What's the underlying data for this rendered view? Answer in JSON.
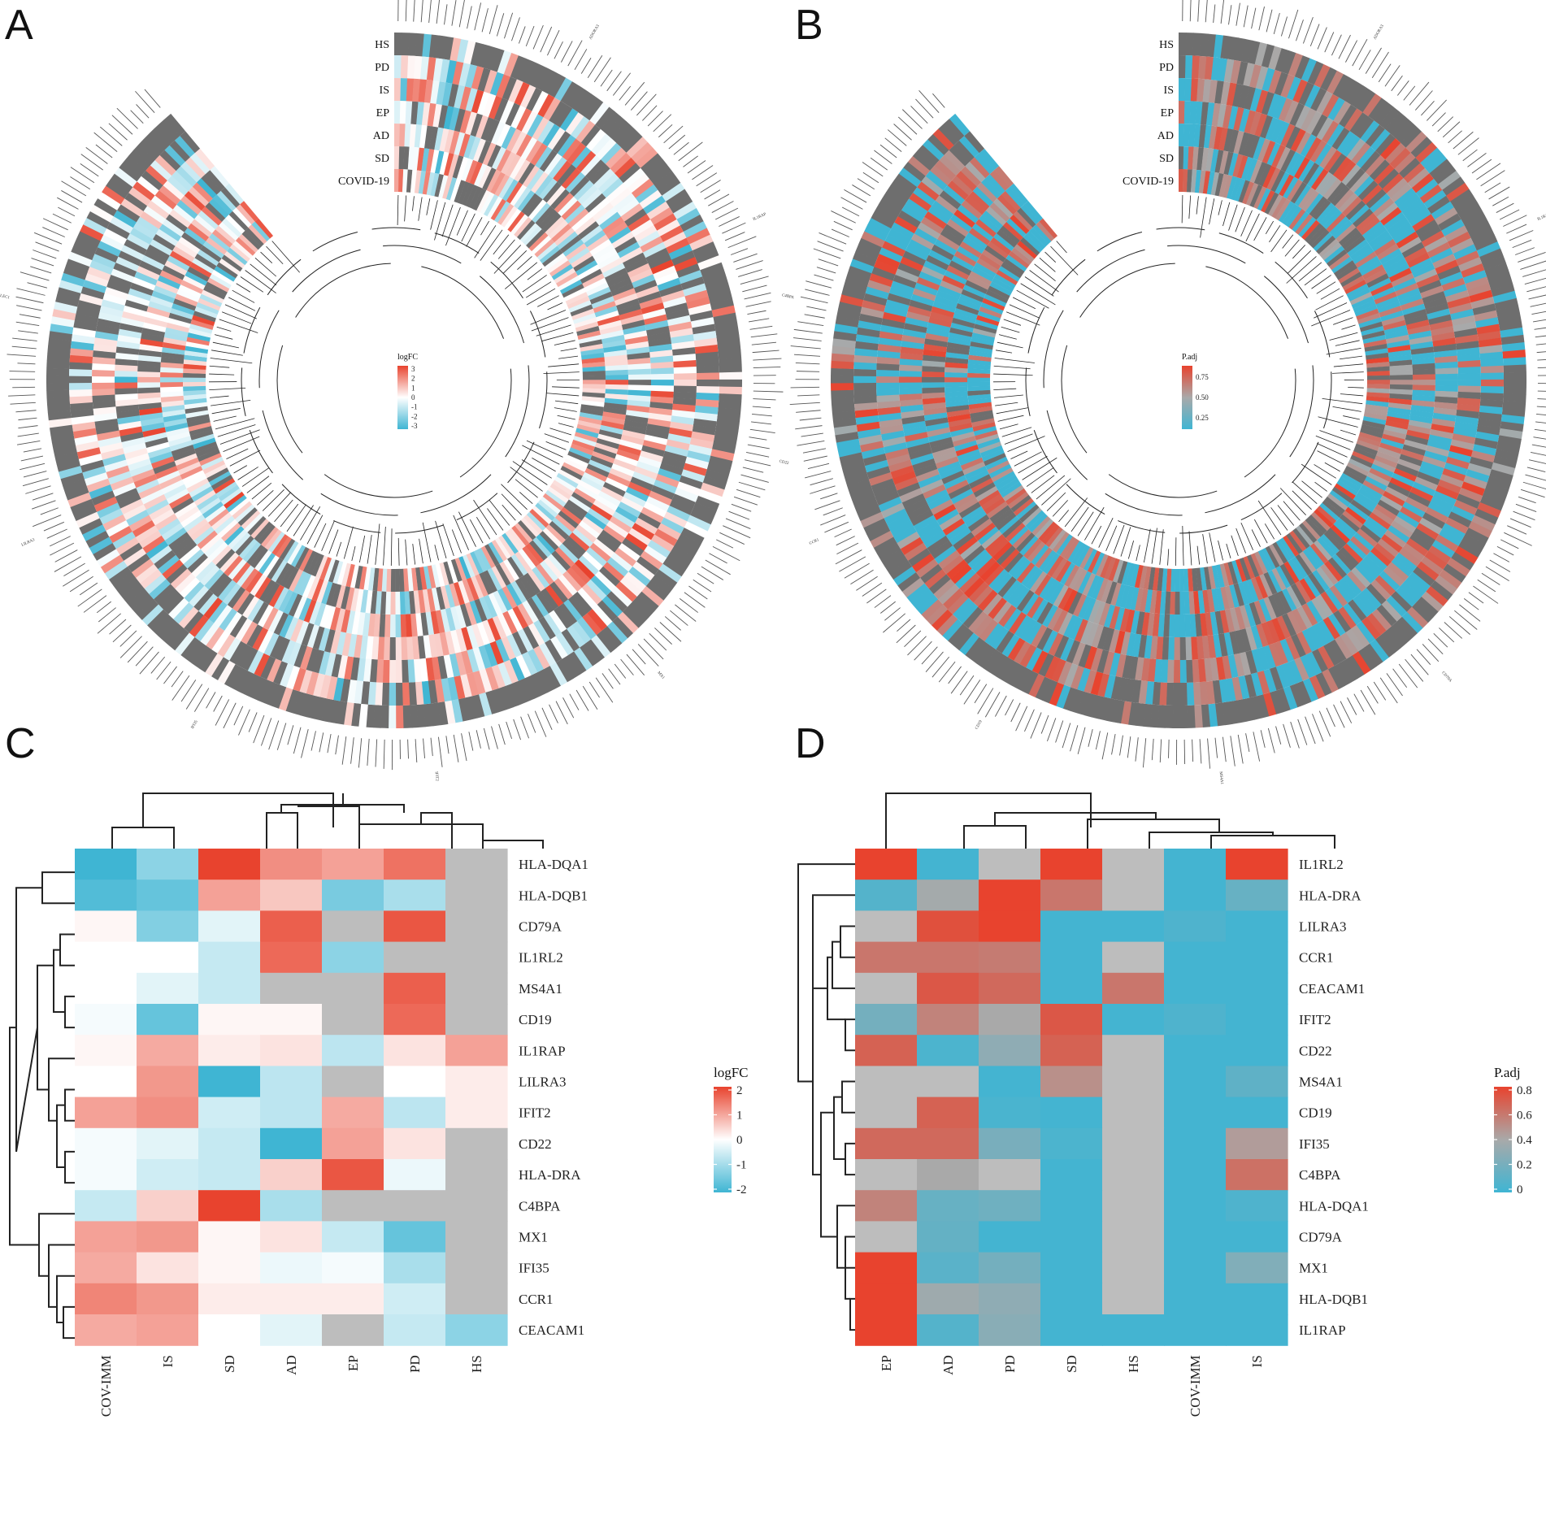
{
  "panel_letters": [
    "A",
    "B",
    "C",
    "D"
  ],
  "colors": {
    "high": "#e8432e",
    "mid": "#ffffff",
    "low": "#3fb5d3",
    "na": "#bdbdbd",
    "na_dark": "#6e6e6e",
    "padj_mid": "#a9a9a9",
    "dendro": "#222222"
  },
  "chart_data": [
    {
      "panel": "A",
      "type": "heatmap",
      "layout": "circular",
      "rings": [
        "HS",
        "PD",
        "IS",
        "EP",
        "AD",
        "SD",
        "COVID-19"
      ],
      "legend": {
        "title": "logFC",
        "ticks": [
          "3",
          "2",
          "1",
          "0",
          "-1",
          "-2",
          "-3"
        ]
      },
      "value_range": [
        -3,
        3
      ],
      "n_genes": 260,
      "gene_labels_visible": [
        "ADORA3",
        "IL1RAP",
        "CD22",
        "MX1",
        "IFIT2",
        "IFI35",
        "LILRA3",
        "SIGLEC1"
      ]
    },
    {
      "panel": "B",
      "type": "heatmap",
      "layout": "circular",
      "rings": [
        "HS",
        "PD",
        "IS",
        "EP",
        "AD",
        "SD",
        "COVID-19"
      ],
      "legend": {
        "title": "P.adj",
        "ticks": [
          "0.75",
          "0.50",
          "0.25"
        ]
      },
      "value_range": [
        0,
        1
      ],
      "n_genes": 260,
      "gene_labels_visible": [
        "ADORA3",
        "IL1RAP",
        "HLA-DQA1",
        "CD79A",
        "MS4A1",
        "CD19",
        "CCR1",
        "C4BPA"
      ]
    },
    {
      "panel": "C",
      "type": "heatmap",
      "columns": [
        "COV-IMM",
        "IS",
        "SD",
        "AD",
        "EP",
        "PD",
        "HS"
      ],
      "rows": [
        "HLA-DQA1",
        "HLA-DQB1",
        "CD79A",
        "IL1RL2",
        "MS4A1",
        "CD19",
        "IL1RAP",
        "LILRA3",
        "IFIT2",
        "CD22",
        "HLA-DRA",
        "C4BPA",
        "MX1",
        "IFI35",
        "CCR1",
        "CEACAM1"
      ],
      "values": [
        [
          -2.0,
          -1.2,
          2.0,
          1.2,
          1.0,
          1.5,
          null
        ],
        [
          -1.8,
          -1.6,
          1.0,
          0.6,
          -1.4,
          -0.9,
          null
        ],
        [
          0.1,
          -1.3,
          -0.3,
          1.7,
          null,
          1.8,
          null
        ],
        [
          0.0,
          0.0,
          -0.6,
          1.6,
          -1.2,
          null,
          null
        ],
        [
          0.0,
          -0.3,
          -0.6,
          null,
          null,
          1.7,
          null
        ],
        [
          -0.1,
          -1.6,
          0.1,
          0.1,
          null,
          1.6,
          null
        ],
        [
          0.1,
          0.9,
          0.2,
          0.3,
          -0.7,
          0.3,
          1.0
        ],
        [
          0.0,
          1.1,
          -2.0,
          -0.7,
          null,
          0.0,
          0.2
        ],
        [
          1.0,
          1.2,
          -0.5,
          -0.7,
          0.9,
          -0.7,
          0.2
        ],
        [
          -0.1,
          -0.3,
          -0.6,
          -2.0,
          1.0,
          0.3,
          null
        ],
        [
          -0.1,
          -0.5,
          -0.6,
          0.5,
          1.8,
          -0.2,
          null
        ],
        [
          -0.6,
          0.5,
          2.0,
          -0.9,
          null,
          null,
          null
        ],
        [
          1.0,
          1.1,
          0.1,
          0.3,
          -0.6,
          -1.6,
          null
        ],
        [
          0.9,
          0.3,
          0.1,
          -0.2,
          -0.1,
          -0.9,
          null
        ],
        [
          1.3,
          1.1,
          0.2,
          0.2,
          0.2,
          -0.5,
          null
        ],
        [
          0.9,
          1.0,
          0.0,
          -0.3,
          null,
          -0.6,
          -1.2
        ]
      ],
      "legend": {
        "title": "logFC",
        "ticks": [
          "2",
          "1",
          "0",
          "-1",
          "-2"
        ]
      },
      "value_range": [
        -2,
        2
      ],
      "na_color": "#bdbdbd"
    },
    {
      "panel": "D",
      "type": "heatmap",
      "columns": [
        "EP",
        "AD",
        "PD",
        "SD",
        "HS",
        "COV-IMM",
        "IS"
      ],
      "rows": [
        "IL1RL2",
        "HLA-DRA",
        "LILRA3",
        "CCR1",
        "CEACAM1",
        "IFIT2",
        "CD22",
        "MS4A1",
        "CD19",
        "IFI35",
        "C4BPA",
        "HLA-DQA1",
        "CD79A",
        "MX1",
        "HLA-DQB1",
        "IL1RAP"
      ],
      "values": [
        [
          0.82,
          0.02,
          null,
          0.84,
          null,
          0.02,
          0.82
        ],
        [
          0.08,
          0.38,
          0.85,
          0.6,
          null,
          0.02,
          0.15
        ],
        [
          null,
          0.75,
          0.8,
          0.02,
          0.02,
          0.06,
          0.02
        ],
        [
          0.6,
          0.6,
          0.58,
          0.02,
          null,
          0.02,
          0.02
        ],
        [
          null,
          0.72,
          0.65,
          0.02,
          0.6,
          0.02,
          0.02
        ],
        [
          0.2,
          0.55,
          0.4,
          0.72,
          0.02,
          0.06,
          0.02
        ],
        [
          0.68,
          0.05,
          0.3,
          0.68,
          null,
          0.02,
          0.02
        ],
        [
          null,
          null,
          0.02,
          0.5,
          null,
          0.02,
          0.12
        ],
        [
          null,
          0.68,
          0.04,
          0.02,
          null,
          0.02,
          0.02
        ],
        [
          0.65,
          0.65,
          0.22,
          0.05,
          null,
          0.02,
          0.45
        ],
        [
          null,
          0.4,
          null,
          0.02,
          null,
          0.02,
          0.62
        ],
        [
          0.55,
          0.15,
          0.18,
          0.02,
          null,
          0.02,
          0.06
        ],
        [
          null,
          0.14,
          0.02,
          0.02,
          null,
          0.02,
          0.02
        ],
        [
          0.82,
          0.1,
          0.2,
          0.02,
          null,
          0.02,
          0.25
        ],
        [
          0.83,
          0.36,
          0.3,
          0.02,
          null,
          0.02,
          0.02
        ],
        [
          0.83,
          0.08,
          0.28,
          0.02,
          0.02,
          0.02,
          0.02
        ]
      ],
      "legend": {
        "title": "P.adj",
        "ticks": [
          "0.8",
          "0.6",
          "0.4",
          "0.2",
          "0"
        ]
      },
      "value_range": [
        0,
        0.8
      ],
      "na_color": "#bdbdbd"
    }
  ]
}
